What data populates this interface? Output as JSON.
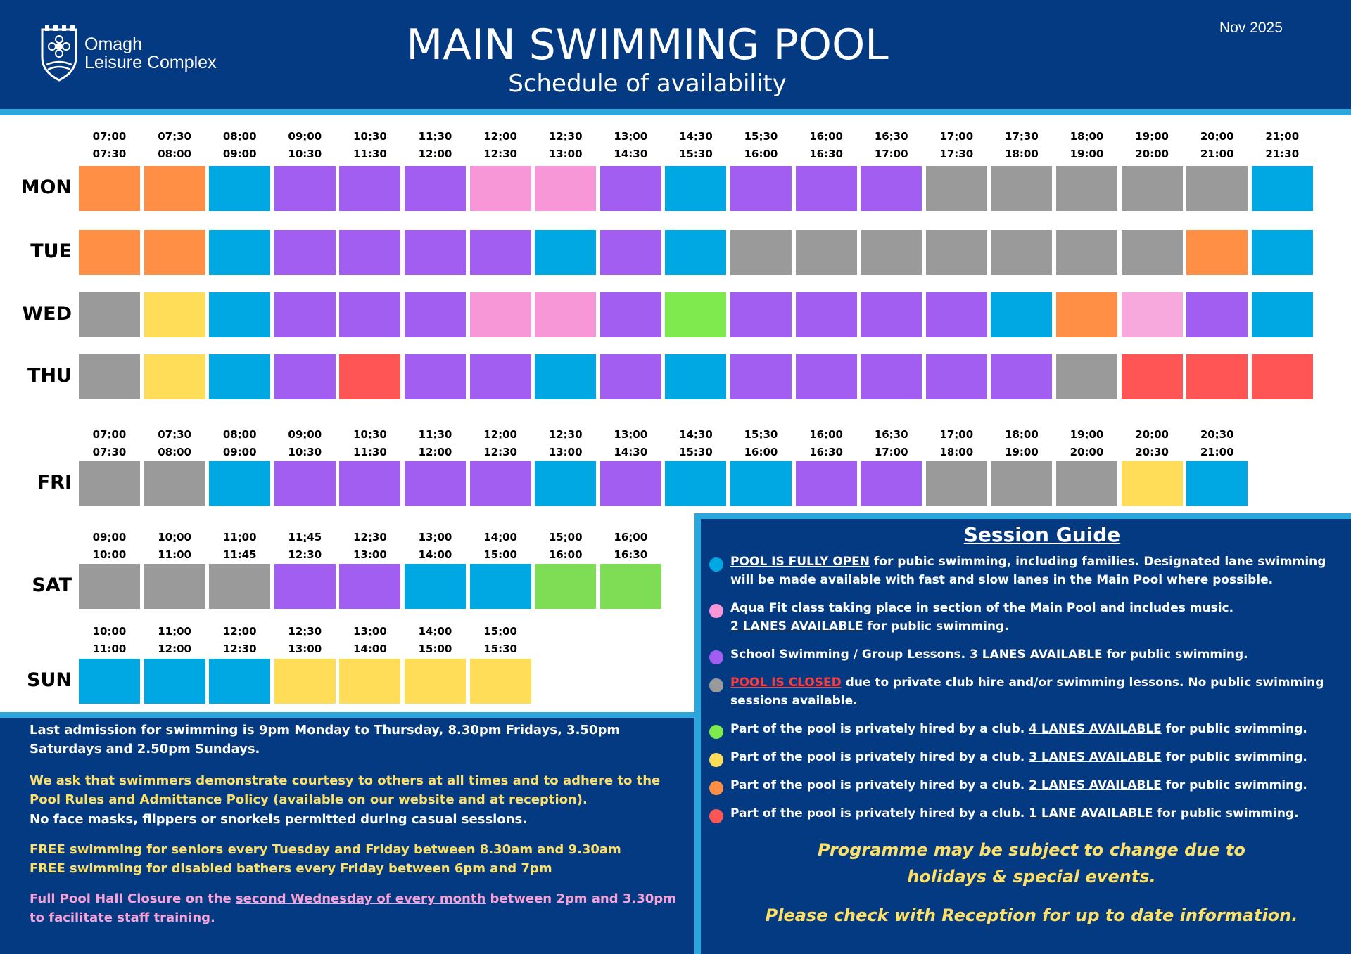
{
  "header": {
    "brand_line1": "Omagh",
    "brand_line2": "Leisure Complex",
    "title": "MAIN SWIMMING POOL",
    "subtitle": "Schedule of availability",
    "date": "Nov 2025",
    "logo_icon": "shield-flower-icon"
  },
  "colors": {
    "orange": "#ff8f45",
    "blue": "#00a8e3",
    "purple": "#a15ef0",
    "pink": "#f797d8",
    "lightpink": "#f7a9dd",
    "gray": "#9a9a9a",
    "yellow": "#ffdd58",
    "green": "#7eea4e",
    "sat_green": "#7edd55",
    "red": "#ff5555",
    "navy": "#043a82",
    "stripe": "#2aa7dd"
  },
  "timetable": {
    "weekday_slots": [
      [
        "07:00",
        "07:30"
      ],
      [
        "07:30",
        "08:00"
      ],
      [
        "08:00",
        "09:00"
      ],
      [
        "09:00",
        "10:30"
      ],
      [
        "10:30",
        "11:30"
      ],
      [
        "11:30",
        "12:00"
      ],
      [
        "12:00",
        "12:30"
      ],
      [
        "12:30",
        "13:00"
      ],
      [
        "13:00",
        "14:30"
      ],
      [
        "14:30",
        "15:30"
      ],
      [
        "15:30",
        "16:00"
      ],
      [
        "16:00",
        "16:30"
      ],
      [
        "16:30",
        "17:00"
      ],
      [
        "17:00",
        "17:30"
      ],
      [
        "17:30",
        "18:00"
      ],
      [
        "18:00",
        "19:00"
      ],
      [
        "19:00",
        "20:00"
      ],
      [
        "20:00",
        "21:00"
      ],
      [
        "21:00",
        "21:30"
      ]
    ],
    "mon": {
      "label": "MON",
      "cells": [
        "orange",
        "orange",
        "blue",
        "purple",
        "purple",
        "purple",
        "pink",
        "pink",
        "purple",
        "blue",
        "purple",
        "purple",
        "purple",
        "gray",
        "gray",
        "gray",
        "gray",
        "gray",
        "blue"
      ]
    },
    "tue": {
      "label": "TUE",
      "cells": [
        "orange",
        "orange",
        "blue",
        "purple",
        "purple",
        "purple",
        "purple",
        "blue",
        "purple",
        "blue",
        "gray",
        "gray",
        "gray",
        "gray",
        "gray",
        "gray",
        "gray",
        "orange",
        "blue"
      ]
    },
    "wed": {
      "label": "WED",
      "cells": [
        "gray",
        "yellow",
        "blue",
        "purple",
        "purple",
        "purple",
        "pink",
        "pink",
        "purple",
        "green",
        "purple",
        "purple",
        "purple",
        "purple",
        "blue",
        "orange",
        "lightpink",
        "purple",
        "blue"
      ]
    },
    "thu": {
      "label": "THU",
      "cells": [
        "gray",
        "yellow",
        "blue",
        "purple",
        "red",
        "purple",
        "purple",
        "blue",
        "purple",
        "blue",
        "purple",
        "purple",
        "purple",
        "purple",
        "purple",
        "gray",
        "red",
        "red",
        "red"
      ]
    },
    "fri": {
      "label": "FRI",
      "slots": [
        [
          "07:00",
          "07:30"
        ],
        [
          "07:30",
          "08:00"
        ],
        [
          "08:00",
          "09:00"
        ],
        [
          "09:00",
          "10:30"
        ],
        [
          "10:30",
          "11:30"
        ],
        [
          "11:30",
          "12:00"
        ],
        [
          "12:00",
          "12:30"
        ],
        [
          "12:30",
          "13:00"
        ],
        [
          "13:00",
          "14:30"
        ],
        [
          "14:30",
          "15:30"
        ],
        [
          "15:30",
          "16:00"
        ],
        [
          "16:00",
          "16:30"
        ],
        [
          "16:30",
          "17:00"
        ],
        [
          "17:00",
          "18:00"
        ],
        [
          "18:00",
          "19:00"
        ],
        [
          "19:00",
          "20:00"
        ],
        [
          "20:00",
          "20:30"
        ],
        [
          "20:30",
          "21:00"
        ]
      ],
      "cells": [
        "gray",
        "gray",
        "blue",
        "purple",
        "purple",
        "purple",
        "purple",
        "blue",
        "purple",
        "blue",
        "blue",
        "purple",
        "purple",
        "gray",
        "gray",
        "gray",
        "yellow",
        "blue"
      ]
    },
    "sat": {
      "label": "SAT",
      "slots": [
        [
          "09:00",
          "10:00"
        ],
        [
          "10:00",
          "11:00"
        ],
        [
          "11:00",
          "11:45"
        ],
        [
          "11:45",
          "12:30"
        ],
        [
          "12:30",
          "13:00"
        ],
        [
          "13:00",
          "14:00"
        ],
        [
          "14:00",
          "15:00"
        ],
        [
          "15:00",
          "16:00"
        ],
        [
          "16:00",
          "16:30"
        ]
      ],
      "cells": [
        "gray",
        "gray",
        "gray",
        "purple",
        "purple",
        "blue",
        "blue",
        "sat_green",
        "sat_green"
      ]
    },
    "sun": {
      "label": "SUN",
      "slots": [
        [
          "10:00",
          "11:00"
        ],
        [
          "11:00",
          "12:00"
        ],
        [
          "12:00",
          "12:30"
        ],
        [
          "12:30",
          "13:00"
        ],
        [
          "13:00",
          "14:00"
        ],
        [
          "14:00",
          "15:00"
        ],
        [
          "15:00",
          "15:30"
        ]
      ],
      "cells": [
        "blue",
        "blue",
        "blue",
        "yellow",
        "yellow",
        "yellow",
        "yellow"
      ]
    }
  },
  "footer": {
    "p1": "Last admission for swimming is 9pm Monday to Thursday, 8.30pm Fridays, 3.50pm Saturdays and 2.50pm Sundays.",
    "p2": "We ask that swimmers demonstrate courtesy to others at all times and to adhere to the Pool Rules and Admittance Policy (available on our website and at reception).",
    "p3": "No face masks, flippers or snorkels permitted during casual sessions.",
    "p4": "FREE swimming for seniors every Tuesday and Friday between 8.30am and 9.30am",
    "p5": "FREE swimming for disabled bathers every Friday between 6pm and 7pm",
    "p6_a": "Full Pool Hall Closure on the ",
    "p6_u": "second Wednesday of every month",
    "p6_b": " between 2pm and 3.30pm to facilitate staff training."
  },
  "guide": {
    "title": "Session Guide",
    "items": [
      {
        "color": "blue",
        "u": "POOL IS FULLY OPEN",
        "rest": " for pubic swimming, including families. Designated lane swimming will be made available with fast and slow lanes in the Main Pool where possible."
      },
      {
        "color": "pink",
        "pre": "Aqua Fit class taking place in section of the Main Pool and includes music.",
        "u": "2 LANES AVAILABLE",
        "rest": " for public swimming."
      },
      {
        "color": "purple",
        "pre": "School Swimming / Group Lessons.  ",
        "u": "3 LANES AVAILABLE ",
        "rest": "for public swimming."
      },
      {
        "color": "gray",
        "red": "POOL IS CLOSED",
        "rest": " due to private club hire and/or swimming lessons. No public swimming sessions available."
      },
      {
        "color": "green",
        "pre": "Part of the pool is privately hired by a club.  ",
        "u": "4 LANES AVAILABLE",
        "rest": " for public swimming."
      },
      {
        "color": "yellow",
        "pre": "Part of the pool is privately hired by a club.  ",
        "u": "3 LANES AVAILABLE",
        "rest": " for public swimming."
      },
      {
        "color": "orange",
        "pre": "Part of the pool is privately hired by a club.  ",
        "u": "2 LANES AVAILABLE",
        "rest": " for public swimming."
      },
      {
        "color": "red",
        "pre": "Part of the pool is privately hired by a club.  ",
        "u": "1 LANE AVAILABLE",
        "rest": " for public swimming."
      }
    ],
    "note1a": "Programme may be subject to change due to",
    "note1b": "holidays & special events.",
    "note2": "Please check with Reception for up to date information."
  }
}
